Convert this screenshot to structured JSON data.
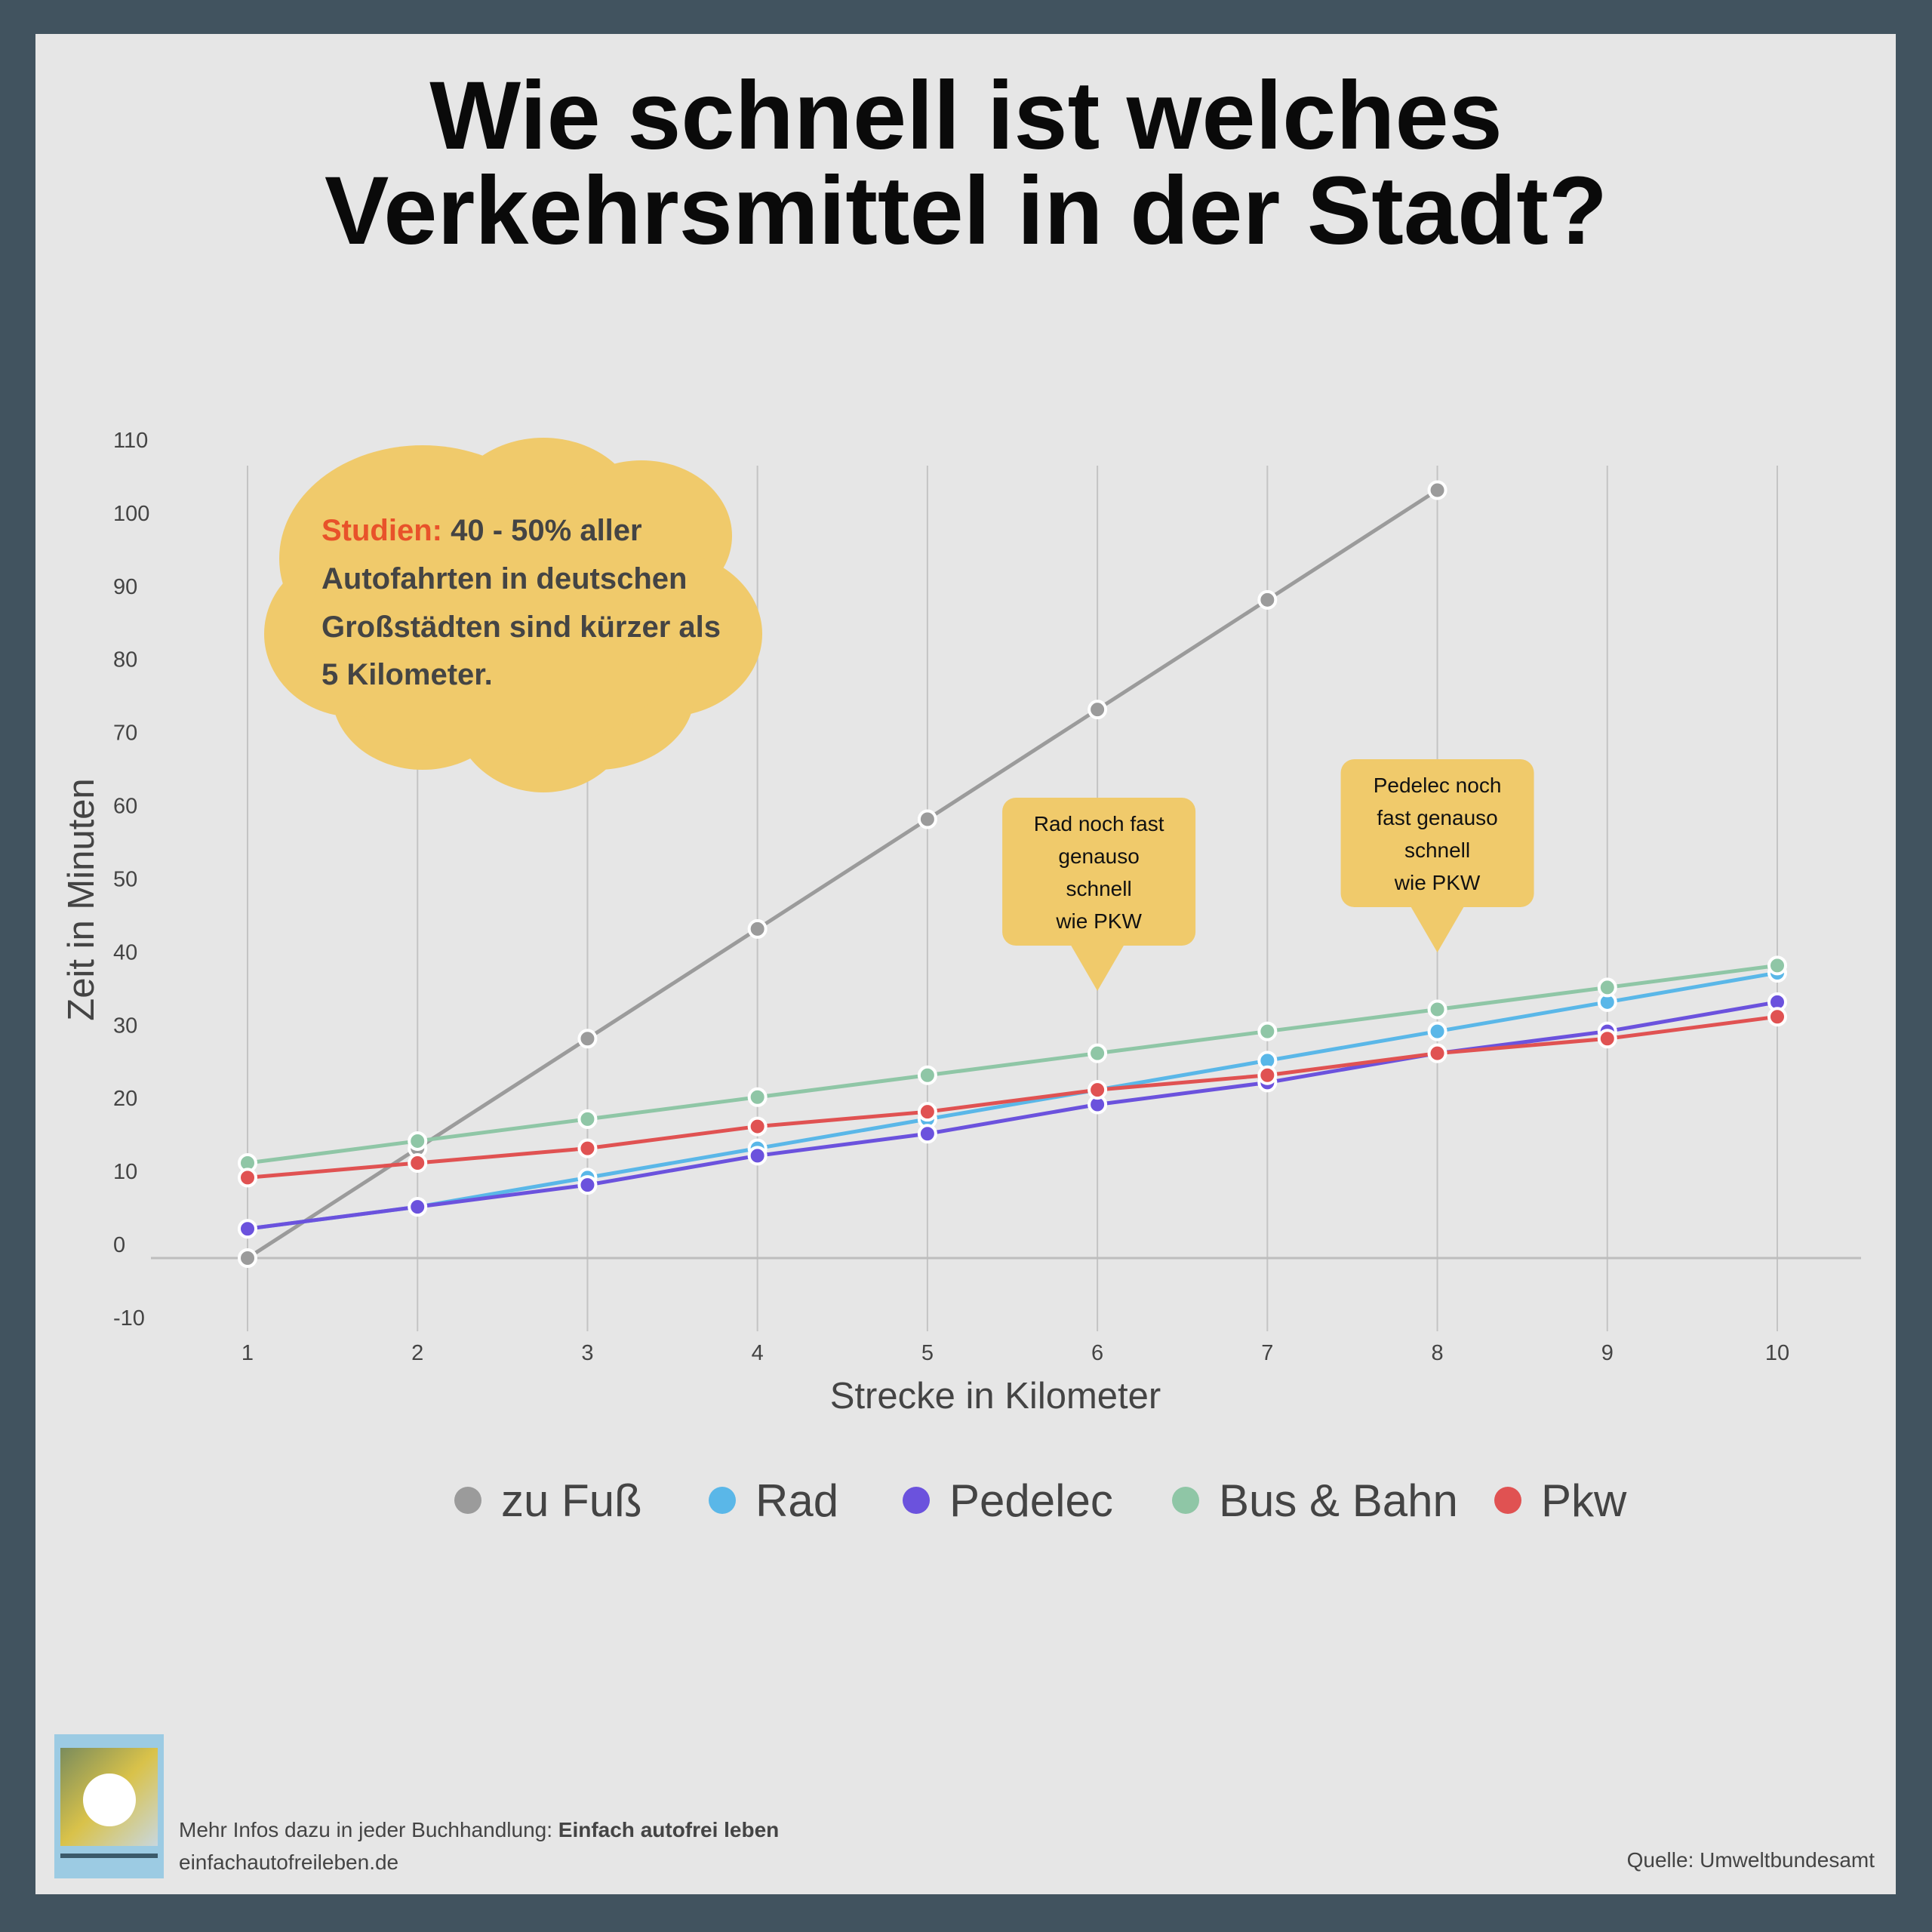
{
  "title_lines": [
    "Wie schnell ist welches",
    "Verkehrsmittel in der Stadt?"
  ],
  "chart_data": {
    "type": "line",
    "title": "Wie schnell ist welches Verkehrsmittel in der Stadt?",
    "xlabel": "Strecke in Kilometer",
    "ylabel": "Zeit in Minuten",
    "x": [
      1,
      2,
      3,
      4,
      5,
      6,
      7,
      8,
      9,
      10
    ],
    "ylim": [
      -10,
      110
    ],
    "yticks": [
      -10,
      0,
      10,
      20,
      30,
      40,
      50,
      60,
      70,
      80,
      90,
      100,
      110
    ],
    "grid": "vertical",
    "legend": "bottom",
    "series": [
      {
        "name": "zu Fuß",
        "color": "#9b9b9b",
        "values": [
          0,
          15,
          30,
          45,
          60,
          75,
          90,
          105,
          null,
          null
        ]
      },
      {
        "name": "Rad",
        "color": "#5ab7e8",
        "values": [
          4,
          7,
          11,
          15,
          19,
          23,
          27,
          31,
          35,
          39
        ]
      },
      {
        "name": "Pedelec",
        "color": "#6b52dd",
        "values": [
          4,
          7,
          10,
          14,
          17,
          21,
          24,
          28,
          31,
          35
        ]
      },
      {
        "name": "Bus & Bahn",
        "color": "#8fc6a6",
        "values": [
          13,
          16,
          19,
          22,
          25,
          28,
          31,
          34,
          37,
          40
        ]
      },
      {
        "name": "Pkw",
        "color": "#e05252",
        "values": [
          11,
          13,
          15,
          18,
          20,
          23,
          25,
          28,
          30,
          33
        ]
      }
    ]
  },
  "cloud": {
    "highlight": "Studien:",
    "highlight_color": "#e8522a",
    "lines": [
      "40 - 50% aller",
      "Autofahrten in deutschen",
      "Großstädten sind kürzer als",
      "5 Kilometer."
    ]
  },
  "callouts": [
    {
      "lines": [
        "Rad noch fast",
        "genauso",
        "schnell",
        "wie PKW"
      ],
      "x": 6
    },
    {
      "lines": [
        "Pedelec noch",
        "fast genauso",
        "schnell",
        "wie PKW"
      ],
      "x": 8
    }
  ],
  "footer": {
    "info_prefix": "Mehr Infos dazu in jeder Buchhandlung: ",
    "info_bold": "Einfach autofrei leben",
    "url": "einfachautofreileben.de",
    "source": "Quelle: Umweltbundesamt",
    "book_title": "#Einfach autofrei leben"
  }
}
